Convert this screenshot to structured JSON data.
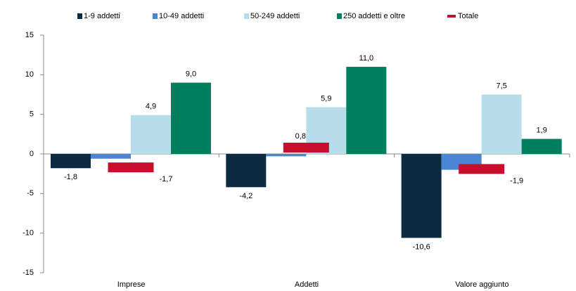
{
  "chart_data": {
    "type": "bar",
    "categories": [
      "Imprese",
      "Addetti",
      "Valore aggiunto"
    ],
    "series": [
      {
        "name": "1-9 addetti",
        "color": "#0d2b40",
        "values": [
          -1.8,
          -4.2,
          -10.6
        ],
        "value_labels": [
          "-1,8",
          "-4,2",
          "-10,6"
        ]
      },
      {
        "name": "10-49 addetti",
        "color": "#4a86d4",
        "values": [
          -0.6,
          -0.3,
          -2.0
        ]
      },
      {
        "name": "50-249 addetti",
        "color": "#b7dcea",
        "values": [
          4.9,
          5.9,
          7.5
        ],
        "value_labels": [
          "4,9",
          "5,9",
          "7,5"
        ]
      },
      {
        "name": "250 addetti e oltre",
        "color": "#00805e",
        "values": [
          9.0,
          11.0,
          1.9
        ],
        "value_labels": [
          "9,0",
          "11,0",
          "1,9"
        ]
      },
      {
        "name": "Totale",
        "color": "#c8102e",
        "mark": "dash",
        "values": [
          -1.7,
          0.8,
          -1.9
        ],
        "value_labels": [
          "-1,7",
          "0,8",
          "-1,9"
        ]
      }
    ],
    "ylim": [
      -15,
      15
    ],
    "yticks": [
      -15,
      -10,
      -5,
      0,
      5,
      10,
      15
    ],
    "legend": "top"
  }
}
